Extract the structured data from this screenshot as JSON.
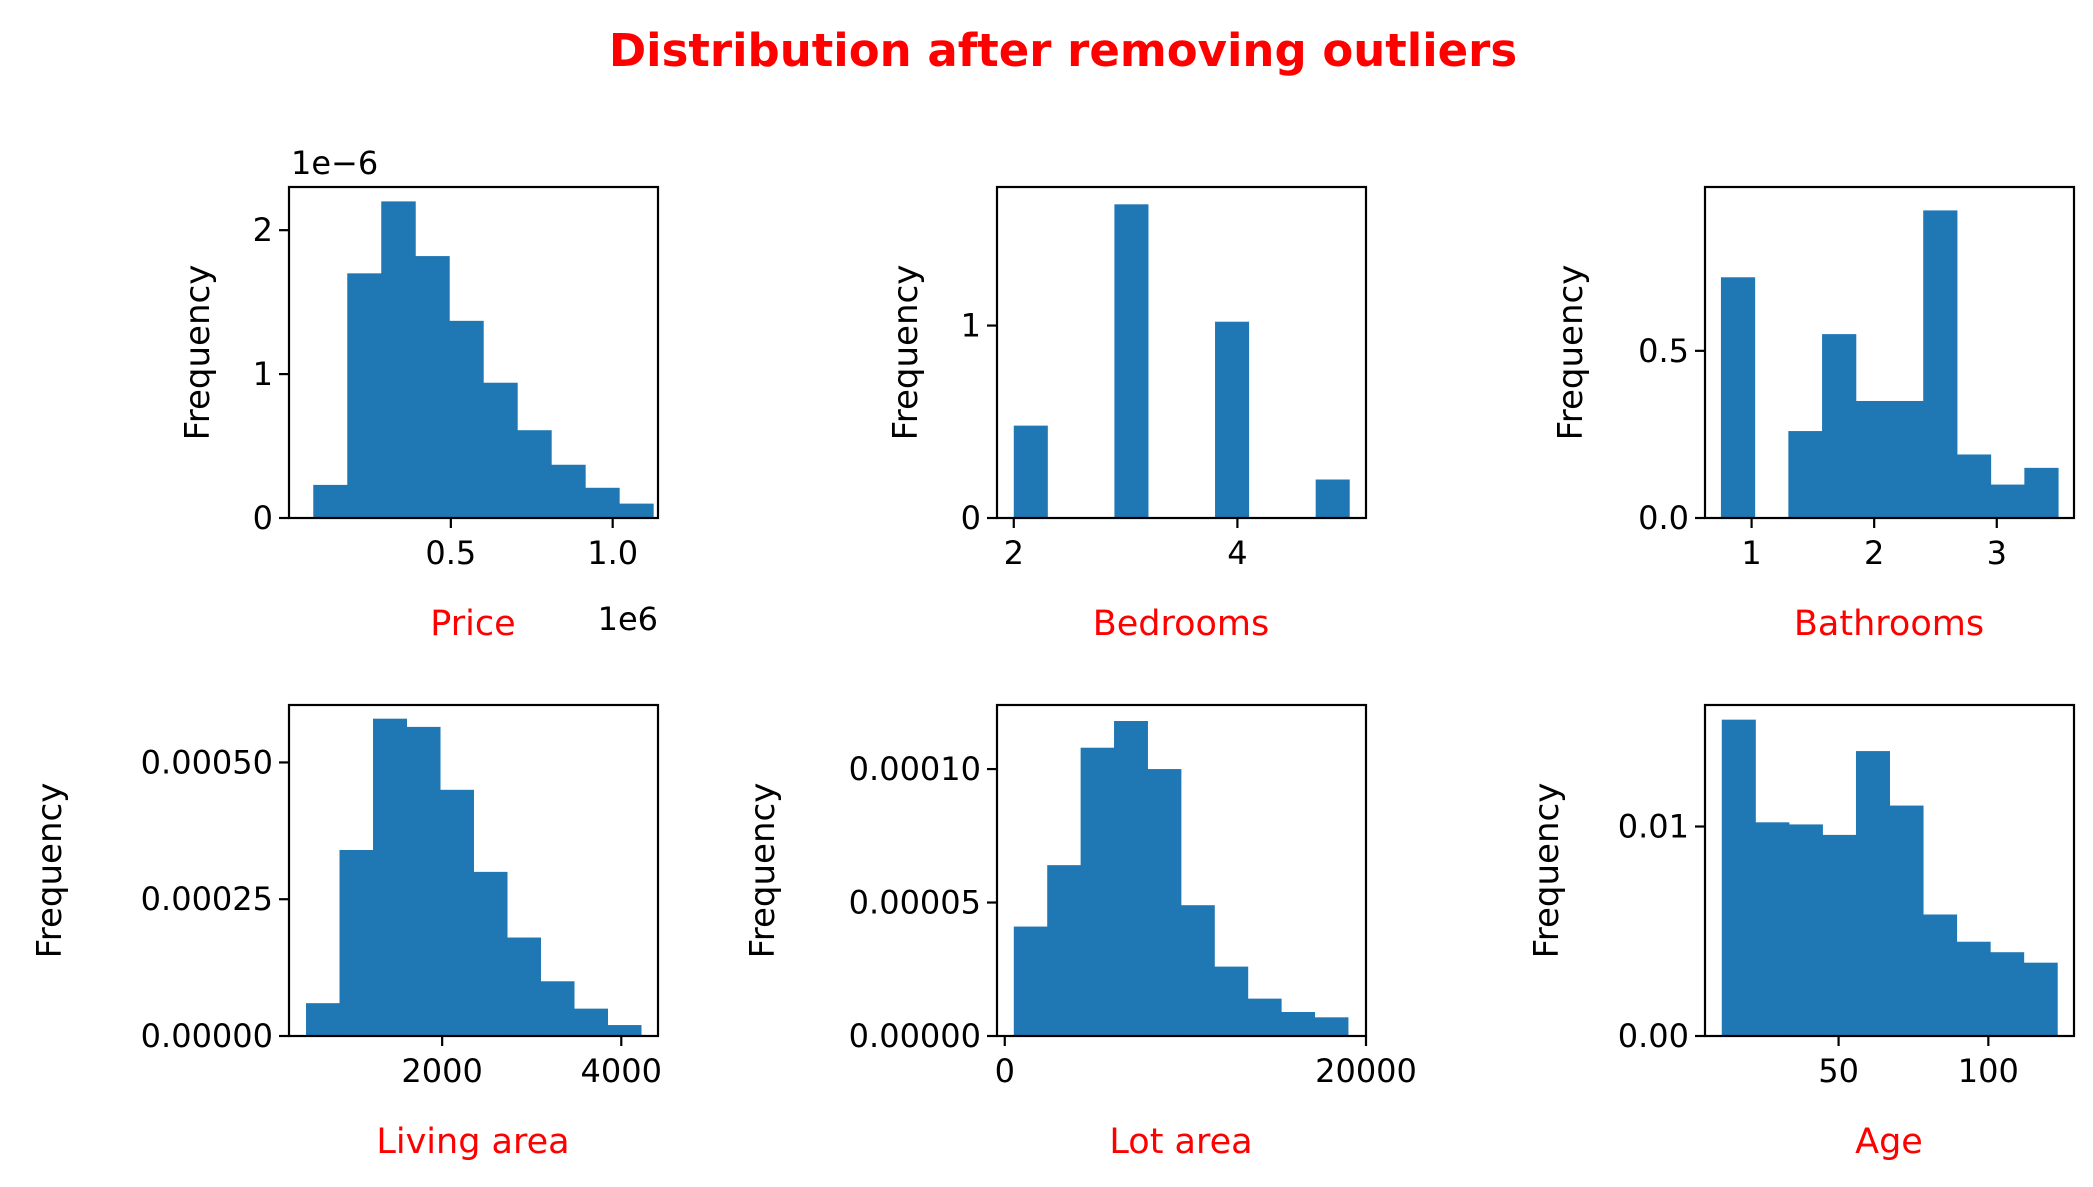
{
  "figure": {
    "title": "Distribution after removing outliers",
    "colors": {
      "title": "#ff0000",
      "xlabel": "#ff0000",
      "bar": "#1f77b4"
    }
  },
  "chart_data": [
    {
      "type": "bar",
      "xlabel": "Price",
      "ylabel": "Frequency",
      "scale_top": "1e−6",
      "scale_bottom": "1e6",
      "bin_edges": [
        75000,
        180000,
        285000,
        390000,
        495000,
        600000,
        705000,
        810000,
        915000,
        1020000,
        1125000
      ],
      "values": [
        0.23,
        1.7,
        2.2,
        1.82,
        1.37,
        0.94,
        0.61,
        0.37,
        0.21,
        0.1
      ],
      "xlim": [
        0,
        1140000
      ],
      "ylim": [
        0,
        2.3
      ],
      "xticks": [
        500000,
        1000000
      ],
      "xtick_labels": [
        "0.5",
        "1.0"
      ],
      "yticks": [
        0,
        1,
        2
      ],
      "ytick_labels": [
        "0",
        "1",
        "2"
      ]
    },
    {
      "type": "bar",
      "xlabel": "Bedrooms",
      "ylabel": "Frequency",
      "bin_edges": [
        2.0,
        2.3,
        2.6,
        2.9,
        3.2,
        3.5,
        3.8,
        4.1,
        4.4,
        4.7,
        5.0
      ],
      "values": [
        0.48,
        0,
        0,
        1.63,
        0,
        0,
        1.02,
        0,
        0,
        0.2
      ],
      "xlim": [
        1.85,
        5.15
      ],
      "ylim": [
        0,
        1.72
      ],
      "xticks": [
        2,
        4
      ],
      "xtick_labels": [
        "2",
        "4"
      ],
      "yticks": [
        0,
        1
      ],
      "ytick_labels": [
        "0",
        "1"
      ]
    },
    {
      "type": "bar",
      "xlabel": "Bathrooms",
      "ylabel": "Frequency",
      "bin_edges": [
        0.75,
        1.025,
        1.3,
        1.575,
        1.85,
        2.125,
        2.4,
        2.675,
        2.95,
        3.225,
        3.5
      ],
      "values": [
        0.72,
        0,
        0.26,
        0.55,
        0.35,
        0.35,
        0.92,
        0.19,
        0.1,
        0.15
      ],
      "xlim": [
        0.62,
        3.63
      ],
      "ylim": [
        0,
        0.99
      ],
      "xticks": [
        1,
        2,
        3
      ],
      "xtick_labels": [
        "1",
        "2",
        "3"
      ],
      "yticks": [
        0,
        0.5
      ],
      "ytick_labels": [
        "0.0",
        "0.5"
      ]
    },
    {
      "type": "bar",
      "xlabel": "Living area",
      "ylabel": "Frequency",
      "bin_edges": [
        480,
        854,
        1228,
        1602,
        1976,
        2350,
        2724,
        3098,
        3472,
        3846,
        4220
      ],
      "values": [
        6e-05,
        0.00034,
        0.00058,
        0.000565,
        0.00045,
        0.0003,
        0.00018,
        0.0001,
        5e-05,
        2e-05
      ],
      "xlim": [
        290,
        4410
      ],
      "ylim": [
        0,
        0.000605
      ],
      "xticks": [
        2000,
        4000
      ],
      "xtick_labels": [
        "2000",
        "4000"
      ],
      "yticks": [
        0,
        0.00025,
        0.0005
      ],
      "ytick_labels": [
        "0.00000",
        "0.00025",
        "0.00050"
      ]
    },
    {
      "type": "bar",
      "xlabel": "Lot area",
      "ylabel": "Frequency",
      "bin_edges": [
        500,
        2350,
        4200,
        6050,
        7900,
        9750,
        11600,
        13450,
        15300,
        17150,
        19000
      ],
      "values": [
        4.1e-05,
        6.4e-05,
        0.000108,
        0.000118,
        0.0001,
        4.9e-05,
        2.6e-05,
        1.4e-05,
        9e-06,
        7e-06
      ],
      "xlim": [
        -430,
        20000
      ],
      "ylim": [
        0,
        0.000124
      ],
      "xticks": [
        0,
        20000
      ],
      "xtick_labels": [
        "0",
        "20000"
      ],
      "yticks": [
        0,
        5e-05,
        0.0001
      ],
      "ytick_labels": [
        "0.00000",
        "0.00005",
        "0.00010"
      ]
    },
    {
      "type": "bar",
      "xlabel": "Age",
      "ylabel": "Frequency",
      "bin_edges": [
        11,
        22.2,
        33.4,
        44.6,
        55.8,
        67,
        78.2,
        89.4,
        100.6,
        111.8,
        123
      ],
      "values": [
        0.0151,
        0.0102,
        0.0101,
        0.0096,
        0.0136,
        0.011,
        0.0058,
        0.0045,
        0.004,
        0.0035
      ],
      "xlim": [
        5.4,
        128.6
      ],
      "ylim": [
        0,
        0.0158
      ],
      "xticks": [
        50,
        100
      ],
      "xtick_labels": [
        "50",
        "100"
      ],
      "yticks": [
        0,
        0.01
      ],
      "ytick_labels": [
        "0.00",
        "0.01"
      ]
    }
  ]
}
